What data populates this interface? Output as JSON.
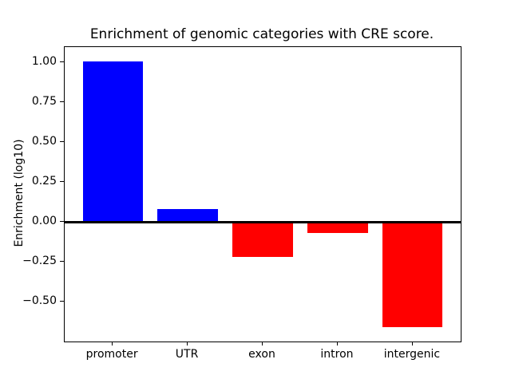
{
  "figure": {
    "kind": "matplotlib-bar-figure"
  },
  "chart_data": {
    "type": "bar",
    "title": "Enrichment of genomic categories with CRE score.",
    "xlabel": "",
    "ylabel": "Enrichment (log10)",
    "categories": [
      "promoter",
      "UTR",
      "exon",
      "intron",
      "intergenic"
    ],
    "values": [
      1.01,
      0.08,
      -0.22,
      -0.07,
      -0.66
    ],
    "color_rule": {
      "positive": "#0000ff",
      "negative": "#ff0000"
    },
    "bar_colors": [
      "#0000ff",
      "#0000ff",
      "#ff0000",
      "#ff0000",
      "#ff0000"
    ],
    "ylim": [
      -0.75,
      1.1
    ],
    "xlim": [
      -0.64,
      4.64
    ],
    "bar_width": 0.8,
    "yticks": [
      {
        "value": 1.0,
        "label": "1.00"
      },
      {
        "value": 0.75,
        "label": "0.75"
      },
      {
        "value": 0.5,
        "label": "0.50"
      },
      {
        "value": 0.25,
        "label": "0.25"
      },
      {
        "value": 0.0,
        "label": "0.00"
      },
      {
        "value": -0.25,
        "label": "−0.25"
      },
      {
        "value": -0.5,
        "label": "−0.50"
      }
    ],
    "grid": false,
    "legend": false,
    "zero_line": true,
    "axis_color": "#000000",
    "background": "#ffffff"
  }
}
